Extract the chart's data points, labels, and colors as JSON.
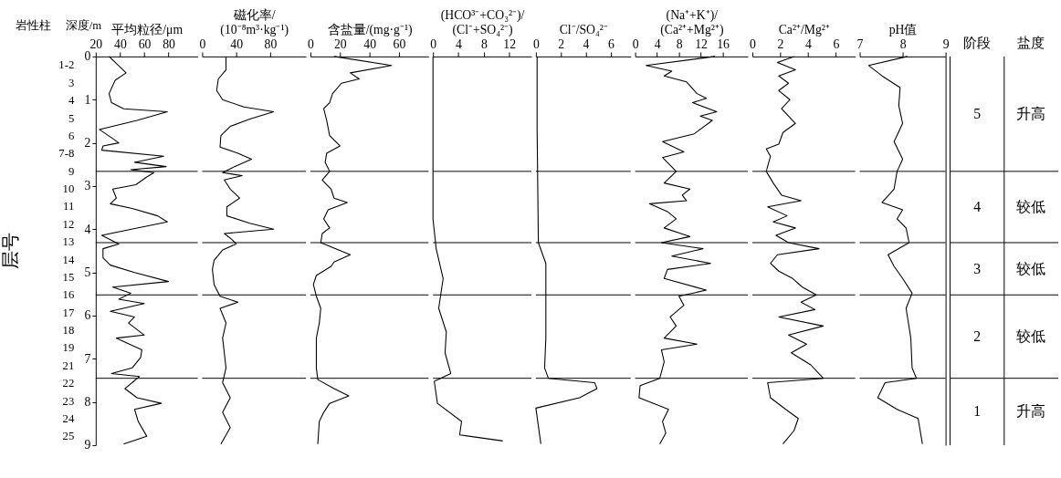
{
  "chart_data": [
    {
      "type": "line",
      "orientation": "horizontal",
      "xlabel": "平均粒径/μm",
      "ylabel": "深度/m",
      "xlim": [
        20,
        104
      ],
      "xticks": [
        20,
        40,
        60,
        80
      ],
      "ylim": [
        9,
        0
      ],
      "yticks": [
        0,
        1,
        2,
        3,
        4,
        5,
        6,
        7,
        8,
        9
      ],
      "color": "#000000",
      "annotations": [
        "层号",
        "岩性柱",
        "1-2",
        "3",
        "4",
        "5",
        "6",
        "7-8",
        "9",
        "10",
        "11",
        "12",
        "13",
        "14",
        "15",
        "16",
        "17",
        "18",
        "19",
        "21",
        "22",
        "23",
        "24",
        "25"
      ],
      "x": [
        0,
        0.38,
        0.55,
        0.86,
        1.07,
        1.21,
        1.28,
        1.48,
        1.69,
        1.9,
        2.0,
        2.07,
        2.17,
        2.31,
        2.45,
        2.55,
        2.62,
        2.69,
        2.79,
        2.97,
        3.07,
        3.28,
        3.41,
        3.52,
        3.69,
        3.83,
        4.03,
        4.14,
        4.24,
        4.34,
        4.45,
        4.66,
        4.83,
        5.0,
        5.21,
        5.34,
        5.48,
        5.62,
        5.72,
        5.9,
        6.03,
        6.17,
        6.45,
        6.52,
        6.79,
        6.97,
        7.21,
        7.34,
        7.41,
        7.69,
        7.9,
        8.03,
        8.17,
        8.45,
        8.79,
        8.97
      ],
      "values": [
        31,
        45,
        36,
        31,
        33,
        43,
        79,
        54,
        23,
        34,
        39,
        26,
        25,
        76,
        52,
        78,
        49,
        68,
        62,
        53,
        34,
        37,
        32,
        50,
        71,
        79,
        44,
        25,
        32,
        39,
        26,
        26,
        32,
        52,
        80,
        34,
        49,
        39,
        60,
        32,
        52,
        47,
        60,
        37,
        58,
        57,
        50,
        33,
        56,
        44,
        54,
        74,
        52,
        55,
        62,
        43
      ],
      "ref_lines": [
        {
          "axis": "y",
          "value": 2.66
        },
        {
          "axis": "y",
          "value": 4.31
        },
        {
          "axis": "y",
          "value": 5.52
        },
        {
          "axis": "y",
          "value": 7.45
        }
      ]
    },
    {
      "type": "line",
      "orientation": "horizontal",
      "xlabel": "磁化率/\n(10⁻⁸m³·kg⁻¹)",
      "xlim": [
        0,
        122
      ],
      "xticks": [
        0,
        40,
        80
      ],
      "ylim": [
        9,
        0
      ],
      "tick_labels": "x",
      "color": "#000000",
      "x": [
        0,
        0.31,
        0.52,
        0.79,
        1.0,
        1.17,
        1.28,
        1.45,
        1.62,
        1.83,
        2.1,
        2.24,
        2.38,
        2.55,
        2.69,
        2.76,
        2.86,
        3.07,
        3.28,
        3.48,
        3.69,
        3.86,
        4.0,
        4.1,
        4.24,
        4.34,
        4.48,
        4.72,
        4.93,
        5.28,
        5.55,
        5.69,
        5.83,
        6.17,
        6.52,
        6.86,
        7.21,
        7.55,
        7.9,
        8.24,
        8.59,
        8.97
      ],
      "values": [
        28,
        28,
        19,
        17,
        24,
        49,
        84,
        56,
        33,
        22,
        21,
        42,
        58,
        38,
        24,
        47,
        26,
        33,
        44,
        29,
        29,
        56,
        84,
        26,
        35,
        40,
        24,
        14,
        12,
        14,
        21,
        42,
        21,
        28,
        24,
        26,
        28,
        24,
        33,
        24,
        33,
        22
      ],
      "ref_lines": [
        {
          "axis": "y",
          "value": 2.66
        },
        {
          "axis": "y",
          "value": 4.31
        },
        {
          "axis": "y",
          "value": 5.52
        },
        {
          "axis": "y",
          "value": 7.45
        }
      ]
    },
    {
      "type": "line",
      "orientation": "horizontal",
      "xlabel": "含盐量/(mg·g⁻¹)",
      "xlim": [
        0,
        80
      ],
      "xticks": [
        0,
        20,
        40,
        60
      ],
      "ylim": [
        9,
        0
      ],
      "tick_labels": "x",
      "color": "#000000",
      "x": [
        0,
        0.21,
        0.38,
        0.52,
        0.62,
        0.86,
        1.07,
        1.21,
        1.48,
        1.83,
        2.07,
        2.24,
        2.45,
        2.66,
        2.86,
        3.07,
        3.28,
        3.38,
        3.55,
        3.76,
        3.97,
        4.1,
        4.31,
        4.59,
        4.76,
        4.86,
        5.07,
        5.28,
        5.55,
        5.83,
        6.17,
        6.52,
        6.86,
        7.21,
        7.48,
        7.69,
        7.86,
        8.03,
        8.24,
        8.45,
        8.97
      ],
      "values": [
        16,
        55,
        27,
        33,
        21,
        15,
        13,
        9,
        11,
        13,
        20,
        11,
        10,
        13,
        8,
        14,
        16,
        25,
        12,
        9,
        13,
        8,
        7,
        27,
        16,
        14,
        4,
        2,
        4,
        7,
        6,
        4,
        4,
        4,
        5,
        16,
        26,
        13,
        9,
        6,
        5
      ],
      "ref_lines": [
        {
          "axis": "y",
          "value": 2.66
        },
        {
          "axis": "y",
          "value": 4.31
        },
        {
          "axis": "y",
          "value": 5.52
        },
        {
          "axis": "y",
          "value": 7.45
        }
      ]
    },
    {
      "type": "line",
      "orientation": "horizontal",
      "xlabel": "(HCO³⁻+CO₃²⁻)/\n(Cl⁻+SO₄²⁻)",
      "xlim": [
        0,
        15.5
      ],
      "xticks": [
        0,
        4,
        8,
        12
      ],
      "ylim": [
        9,
        0
      ],
      "tick_labels": "x",
      "color": "#000000",
      "x": [
        0,
        3.76,
        4.45,
        5.14,
        5.83,
        6.38,
        6.86,
        7.34,
        7.52,
        8.03,
        8.45,
        8.76,
        8.9
      ],
      "values": [
        0,
        0,
        0.5,
        1.6,
        0.9,
        2.1,
        1.9,
        2.8,
        0.2,
        0.7,
        4.5,
        4.2,
        11
      ],
      "ref_lines": [
        {
          "axis": "y",
          "value": 2.66
        },
        {
          "axis": "y",
          "value": 4.31
        },
        {
          "axis": "y",
          "value": 5.52
        },
        {
          "axis": "y",
          "value": 7.45
        }
      ]
    },
    {
      "type": "line",
      "orientation": "horizontal",
      "xlabel": "Cl⁻/SO₄²⁻",
      "xlim": [
        0,
        7.6
      ],
      "xticks": [
        0,
        2,
        4,
        6
      ],
      "ylim": [
        9,
        0
      ],
      "tick_labels": "x",
      "color": "#000000",
      "x": [
        0,
        1.69,
        4.31,
        4.79,
        5.48,
        6.52,
        7.21,
        7.45,
        7.55,
        7.69,
        7.9,
        8.14,
        8.97
      ],
      "values": [
        0.1,
        0.1,
        0.2,
        0.8,
        0.8,
        0.8,
        0.7,
        1.0,
        4.7,
        4.9,
        3.5,
        0,
        0.4
      ],
      "ref_lines": [
        {
          "axis": "y",
          "value": 2.66
        },
        {
          "axis": "y",
          "value": 4.31
        },
        {
          "axis": "y",
          "value": 5.52
        },
        {
          "axis": "y",
          "value": 7.45
        }
      ]
    },
    {
      "type": "line",
      "orientation": "horizontal",
      "xlabel": "(Na⁺+K⁺)/\n(Ca²⁺+Mg²⁺)",
      "xlim": [
        0,
        20.6
      ],
      "xticks": [
        0,
        4,
        8,
        12,
        16
      ],
      "ylim": [
        9,
        0
      ],
      "tick_labels": "x",
      "color": "#000000",
      "x": [
        0,
        0.21,
        0.34,
        0.45,
        0.59,
        0.86,
        0.97,
        1.07,
        1.28,
        1.38,
        1.48,
        1.79,
        1.97,
        2.21,
        2.34,
        2.66,
        2.93,
        3.07,
        3.21,
        3.34,
        3.41,
        3.59,
        3.76,
        3.97,
        4.17,
        4.31,
        4.45,
        4.62,
        4.79,
        4.93,
        5.14,
        5.41,
        5.55,
        5.76,
        6.03,
        6.24,
        6.52,
        6.66,
        6.79,
        7.07,
        7.45,
        7.62,
        7.9,
        8.17,
        8.45,
        8.72,
        8.97
      ],
      "values": [
        14.6,
        2,
        6.7,
        5.3,
        9.4,
        11.3,
        13,
        10.5,
        14.9,
        11.9,
        14.1,
        10.8,
        5,
        8.9,
        5,
        7.5,
        5.3,
        10,
        8.6,
        9.4,
        2.6,
        5.9,
        7.5,
        5.3,
        10,
        4.8,
        12.4,
        6.7,
        13.8,
        5.9,
        5.3,
        13,
        8,
        8.9,
        6.4,
        7.5,
        5.3,
        11.3,
        4.8,
        5.3,
        4.5,
        0.9,
        0.7,
        6.1,
        5,
        5.6,
        4.5
      ],
      "ref_lines": [
        {
          "axis": "y",
          "value": 2.66
        },
        {
          "axis": "y",
          "value": 4.31
        },
        {
          "axis": "y",
          "value": 5.52
        },
        {
          "axis": "y",
          "value": 7.45
        }
      ]
    },
    {
      "type": "line",
      "orientation": "horizontal",
      "xlabel": "Ca²⁺/Mg²⁺",
      "xlim": [
        0,
        7.4
      ],
      "xticks": [
        0,
        2,
        4,
        6
      ],
      "ylim": [
        9,
        0
      ],
      "tick_labels": "x",
      "color": "#000000",
      "x": [
        0,
        0.14,
        0.31,
        0.45,
        0.62,
        0.79,
        1.0,
        1.21,
        1.55,
        1.76,
        2.03,
        2.14,
        2.31,
        2.66,
        2.93,
        3.21,
        3.34,
        3.48,
        3.69,
        3.83,
        3.97,
        4.14,
        4.31,
        4.45,
        4.59,
        4.79,
        4.97,
        5.14,
        5.34,
        5.52,
        5.69,
        5.86,
        6.03,
        6.24,
        6.45,
        6.66,
        6.86,
        7.14,
        7.45,
        7.55,
        7.9,
        8.17,
        8.38,
        8.66,
        8.97
      ],
      "values": [
        3,
        1.8,
        3.1,
        1.9,
        2.6,
        1.9,
        2.7,
        2.1,
        3.1,
        2.2,
        1.9,
        1,
        1.3,
        1,
        1.5,
        2.1,
        3.5,
        1.1,
        2.5,
        1.5,
        3.1,
        1.7,
        2.6,
        4.8,
        1.8,
        1.3,
        1.9,
        2.9,
        3.6,
        4.6,
        3.5,
        4.5,
        1.9,
        5.1,
        2.6,
        3.9,
        2.8,
        4.2,
        5.1,
        1.1,
        1.3,
        2.4,
        3.3,
        3,
        2.2
      ],
      "ref_lines": [
        {
          "axis": "y",
          "value": 2.66
        },
        {
          "axis": "y",
          "value": 4.31
        },
        {
          "axis": "y",
          "value": 5.52
        },
        {
          "axis": "y",
          "value": 7.45
        }
      ]
    },
    {
      "type": "line",
      "orientation": "horizontal",
      "xlabel": "pH值",
      "xlim": [
        7,
        9
      ],
      "xticks": [
        7,
        8,
        9
      ],
      "ylim": [
        9,
        0
      ],
      "tick_labels": "x",
      "color": "#000000",
      "x": [
        0,
        0.21,
        0.45,
        0.72,
        1.14,
        1.55,
        1.97,
        2.38,
        2.66,
        3.07,
        3.38,
        3.55,
        3.76,
        3.97,
        4.31,
        4.59,
        4.86,
        5.14,
        5.48,
        5.83,
        6.52,
        7.21,
        7.45,
        7.55,
        7.9,
        8.17,
        8.38,
        8.97
      ],
      "values": [
        8.11,
        7.21,
        7.52,
        7.94,
        7.91,
        8.0,
        7.8,
        8.0,
        7.87,
        7.8,
        7.52,
        8.0,
        7.87,
        8.08,
        8.15,
        7.66,
        7.8,
        8.0,
        8.22,
        8.08,
        8.19,
        8.22,
        8.32,
        7.59,
        7.42,
        7.87,
        8.36,
        8.46
      ],
      "ref_lines": [
        {
          "axis": "y",
          "value": 2.66
        },
        {
          "axis": "y",
          "value": 4.31
        },
        {
          "axis": "y",
          "value": 5.52
        },
        {
          "axis": "y",
          "value": 7.45
        }
      ]
    },
    {
      "type": "other",
      "categories": [
        "阶段",
        "盐度"
      ],
      "annotations": [
        "5",
        "升高",
        "4",
        "较低",
        "3",
        "较低",
        "2",
        "较低",
        "1",
        "升高"
      ]
    }
  ]
}
